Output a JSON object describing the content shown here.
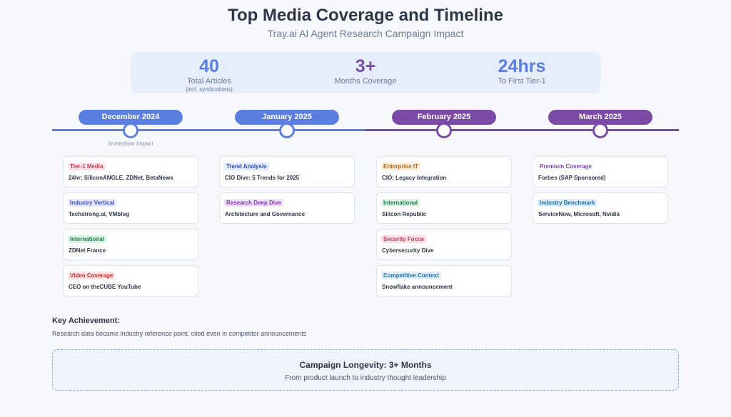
{
  "title": "Top Media Coverage and Timeline",
  "subtitle": "Tray.ai AI Agent Research Campaign Impact",
  "stats": [
    {
      "value": "40",
      "label": "Total Articles",
      "sub": "(incl. syndications)",
      "color": "#5b7fe0"
    },
    {
      "value": "3+",
      "label": "Months Coverage",
      "sub": "",
      "color": "#7b4aa6"
    },
    {
      "value": "24hrs",
      "label": "To First Tier-1",
      "sub": "",
      "color": "#5b7fe0"
    }
  ],
  "timeline": {
    "months": [
      "December 2024",
      "January 2025",
      "February 2025",
      "March 2025"
    ],
    "colors": {
      "blue": "#5b7fe0",
      "purple": "#7b4aa6"
    },
    "annotation": "Immediate Impact"
  },
  "columns": [
    [
      {
        "tag": "Tier-1 Media",
        "text": "24hr: SiliconANGLE, ZDNet, BetaNews",
        "tag_bg": "#fde4e8",
        "tag_color": "#c0395a"
      },
      {
        "tag": "Industry Vertical",
        "text": "Techstrong.ai, VMblog",
        "tag_bg": "#e4e8fd",
        "tag_color": "#3b4fbf"
      },
      {
        "tag": "International",
        "text": "ZDNet France",
        "tag_bg": "#dcf5e6",
        "tag_color": "#237a4b"
      },
      {
        "tag": "Video Coverage",
        "text": "CEO on theCUBE YouTube",
        "tag_bg": "#fde2e2",
        "tag_color": "#c53030"
      }
    ],
    [
      {
        "tag": "Trend Analysis",
        "text": "CIO Dive: 5 Trends for 2025",
        "tag_bg": "#e2ebfd",
        "tag_color": "#2b4fa8"
      },
      {
        "tag": "Research Deep Dive",
        "text": "Architecture and Governance",
        "tag_bg": "#f1e2fb",
        "tag_color": "#8a33b8"
      }
    ],
    [
      {
        "tag": "Enterprise IT",
        "text": "CIO: Legacy Integration",
        "tag_bg": "#fdefd9",
        "tag_color": "#b4651a"
      },
      {
        "tag": "International",
        "text": "Silicon Republic",
        "tag_bg": "#dcf5e6",
        "tag_color": "#237a4b"
      },
      {
        "tag": "Security Focus",
        "text": "Cybersecurity Dive",
        "tag_bg": "#fde2e6",
        "tag_color": "#c0395a"
      },
      {
        "tag": "Competitive Context",
        "text": "Snowflake announcement",
        "tag_bg": "#dff0fb",
        "tag_color": "#246a9e"
      }
    ],
    [
      {
        "tag": "Premium Coverage",
        "text": "Forbes (SAP Sponsored)",
        "tag_bg": "#ffffff",
        "tag_color": "#7b3fb0"
      },
      {
        "tag": "Industry Benchmark",
        "text": "ServiceNow, Microsoft, Nvidia",
        "tag_bg": "#dbeefc",
        "tag_color": "#2a6aa3"
      }
    ]
  ],
  "key_achievement": {
    "title": "Key Achievement:",
    "text": "Research data became industry reference point, cited even in competitor announcements"
  },
  "longevity": {
    "title": "Campaign Longevity: 3+ Months",
    "subtitle": "From product launch to industry thought leadership"
  }
}
